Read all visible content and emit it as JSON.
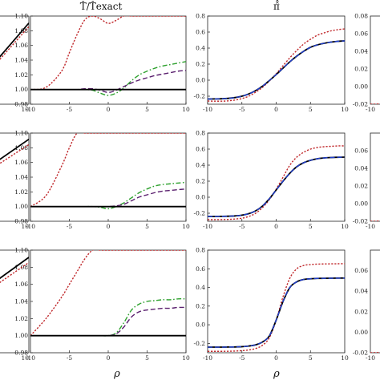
{
  "figure": {
    "titles": [
      "T̂/T̂exact",
      "π̂̂"
    ],
    "xlabel": "ρ"
  },
  "colors": {
    "black": "#000000",
    "red": "#c0282b",
    "green": "#2ca02c",
    "blue": "#1f3fd0",
    "purple": "#5a1f6e"
  },
  "chart_data": [
    {
      "type": "line",
      "id": "r1c2",
      "xlim": [
        -10,
        10
      ],
      "ylim": [
        0.98,
        1.1
      ],
      "xticks": [
        "-10",
        "-5",
        "0",
        "5",
        "10"
      ],
      "yticks": [
        "0.98",
        "1.00",
        "1.02",
        "1.04",
        "1.06",
        "1.08",
        "1.10"
      ],
      "x": [
        -10,
        -8,
        -6,
        -5,
        -4,
        -3,
        -2,
        -1,
        0,
        1,
        2,
        3,
        4,
        5,
        6,
        7,
        8,
        9,
        10
      ],
      "series": [
        {
          "color": "red",
          "dash": "dotted",
          "values": [
            1.0,
            1.003,
            1.025,
            1.05,
            1.075,
            1.095,
            1.1,
            1.096,
            1.09,
            1.094,
            1.1,
            1.1,
            1.1,
            1.1,
            1.1,
            1.1,
            1.1,
            1.1,
            1.1
          ]
        },
        {
          "color": "green",
          "dash": "dashdot",
          "values": [
            1.0,
            1.0,
            1.0,
            1.0,
            1.0,
            1.0,
            0.999,
            0.995,
            0.992,
            0.995,
            1.002,
            1.012,
            1.02,
            1.025,
            1.029,
            1.032,
            1.034,
            1.036,
            1.038
          ]
        },
        {
          "color": "purple",
          "dash": "dashed",
          "values": [
            1.0,
            1.0,
            1.0,
            1.0,
            1.0,
            1.001,
            1.001,
            0.999,
            0.996,
            0.999,
            1.004,
            1.009,
            1.013,
            1.016,
            1.019,
            1.021,
            1.023,
            1.025,
            1.026
          ]
        },
        {
          "color": "black",
          "dash": "solid",
          "values": [
            1.0,
            1.0,
            1.0,
            1.0,
            1.0,
            1.0,
            1.0,
            1.0,
            1.0,
            1.0,
            1.0,
            1.0,
            1.0,
            1.0,
            1.0,
            1.0,
            1.0,
            1.0,
            1.0
          ]
        }
      ]
    },
    {
      "type": "line",
      "id": "r2c2",
      "xlim": [
        -10,
        10
      ],
      "ylim": [
        0.98,
        1.1
      ],
      "xticks": [
        "-10",
        "-5",
        "0",
        "5",
        "10"
      ],
      "yticks": [
        "0.98",
        "1.00",
        "1.02",
        "1.04",
        "1.06",
        "1.08",
        "1.10"
      ],
      "x": [
        -10,
        -8,
        -6,
        -5,
        -4,
        -3,
        -2,
        -1,
        0,
        1,
        2,
        3,
        4,
        5,
        6,
        7,
        8,
        9,
        10
      ],
      "series": [
        {
          "color": "red",
          "dash": "dotted",
          "values": [
            1.0,
            1.015,
            1.055,
            1.08,
            1.1,
            1.1,
            1.1,
            1.1,
            1.1,
            1.1,
            1.1,
            1.1,
            1.1,
            1.1,
            1.1,
            1.1,
            1.1,
            1.1,
            1.1
          ]
        },
        {
          "color": "green",
          "dash": "dashdot",
          "values": [
            1.0,
            1.0,
            1.0,
            1.0,
            1.0,
            1.0,
            1.0,
            0.999,
            0.997,
            1.0,
            1.005,
            1.012,
            1.019,
            1.024,
            1.028,
            1.03,
            1.031,
            1.032,
            1.033
          ]
        },
        {
          "color": "purple",
          "dash": "dashed",
          "values": [
            1.0,
            1.0,
            1.0,
            1.0,
            1.0,
            1.0,
            1.0,
            1.0,
            1.0,
            1.001,
            1.003,
            1.008,
            1.013,
            1.016,
            1.019,
            1.021,
            1.022,
            1.023,
            1.024
          ]
        },
        {
          "color": "black",
          "dash": "solid",
          "values": [
            1.0,
            1.0,
            1.0,
            1.0,
            1.0,
            1.0,
            1.0,
            1.0,
            1.0,
            1.0,
            1.0,
            1.0,
            1.0,
            1.0,
            1.0,
            1.0,
            1.0,
            1.0,
            1.0
          ]
        }
      ]
    },
    {
      "type": "line",
      "id": "r3c2",
      "xlim": [
        -10,
        10
      ],
      "ylim": [
        0.98,
        1.1
      ],
      "xticks": [
        "-10",
        "-5",
        "0",
        "5",
        "10"
      ],
      "yticks": [
        "0.98",
        "1.00",
        "1.02",
        "1.04",
        "1.06",
        "1.08",
        "1.10"
      ],
      "x": [
        -10,
        -8,
        -6,
        -5,
        -4,
        -3,
        -2,
        -1,
        0,
        1,
        2,
        3,
        4,
        5,
        6,
        7,
        8,
        9,
        10
      ],
      "series": [
        {
          "color": "red",
          "dash": "dotted",
          "values": [
            1.0,
            1.02,
            1.045,
            1.06,
            1.075,
            1.09,
            1.1,
            1.1,
            1.1,
            1.1,
            1.1,
            1.1,
            1.1,
            1.1,
            1.1,
            1.1,
            1.1,
            1.1,
            1.1
          ]
        },
        {
          "color": "green",
          "dash": "dashdot",
          "values": [
            1.0,
            1.0,
            1.0,
            1.0,
            1.0,
            1.0,
            1.0,
            1.0,
            1.0,
            1.003,
            1.015,
            1.03,
            1.037,
            1.04,
            1.041,
            1.042,
            1.042,
            1.043,
            1.043
          ]
        },
        {
          "color": "purple",
          "dash": "dashed",
          "values": [
            1.0,
            1.0,
            1.0,
            1.0,
            1.0,
            1.0,
            1.0,
            1.0,
            1.0,
            1.002,
            1.01,
            1.022,
            1.028,
            1.03,
            1.031,
            1.032,
            1.032,
            1.033,
            1.033
          ]
        },
        {
          "color": "black",
          "dash": "solid",
          "values": [
            1.0,
            1.0,
            1.0,
            1.0,
            1.0,
            1.0,
            1.0,
            1.0,
            1.0,
            1.0,
            1.0,
            1.0,
            1.0,
            1.0,
            1.0,
            1.0,
            1.0,
            1.0,
            1.0
          ]
        }
      ]
    },
    {
      "type": "line",
      "id": "r1c3",
      "xlim": [
        -10,
        10
      ],
      "ylim": [
        -0.3,
        0.8
      ],
      "xticks": [
        "-10",
        "-5",
        "0",
        "5",
        "10"
      ],
      "yticks": [
        "-0.2",
        "0.0",
        "0.2",
        "0.4",
        "0.6",
        "0.8"
      ],
      "x": [
        -10,
        -9,
        -8,
        -7,
        -6,
        -5,
        -4,
        -3,
        -2,
        -1,
        0,
        1,
        2,
        3,
        4,
        5,
        6,
        7,
        8,
        9,
        10
      ],
      "series": [
        {
          "color": "red",
          "dash": "dotted",
          "values": [
            -0.26,
            -0.262,
            -0.262,
            -0.258,
            -0.248,
            -0.23,
            -0.2,
            -0.15,
            -0.09,
            -0.01,
            0.08,
            0.18,
            0.28,
            0.37,
            0.45,
            0.51,
            0.56,
            0.59,
            0.615,
            0.63,
            0.64
          ]
        },
        {
          "color": "black",
          "dash": "solid",
          "values": [
            -0.235,
            -0.234,
            -0.232,
            -0.227,
            -0.217,
            -0.2,
            -0.172,
            -0.13,
            -0.075,
            -0.005,
            0.07,
            0.15,
            0.23,
            0.3,
            0.36,
            0.41,
            0.44,
            0.46,
            0.475,
            0.485,
            0.49
          ]
        },
        {
          "color": "blue",
          "dash": "dashed",
          "values": [
            -0.235,
            -0.234,
            -0.232,
            -0.227,
            -0.217,
            -0.2,
            -0.172,
            -0.13,
            -0.075,
            -0.005,
            0.07,
            0.15,
            0.23,
            0.3,
            0.36,
            0.41,
            0.44,
            0.46,
            0.475,
            0.485,
            0.49
          ]
        }
      ]
    },
    {
      "type": "line",
      "id": "r2c3",
      "xlim": [
        -10,
        10
      ],
      "ylim": [
        -0.3,
        0.8
      ],
      "xticks": [
        "-10",
        "-5",
        "0",
        "5",
        "10"
      ],
      "yticks": [
        "-0.2",
        "0.0",
        "0.2",
        "0.4",
        "0.6",
        "0.8"
      ],
      "x": [
        -10,
        -9,
        -8,
        -7,
        -6,
        -5,
        -4,
        -3,
        -2,
        -1,
        0,
        1,
        2,
        3,
        4,
        5,
        6,
        7,
        8,
        9,
        10
      ],
      "series": [
        {
          "color": "red",
          "dash": "dotted",
          "values": [
            -0.28,
            -0.28,
            -0.279,
            -0.277,
            -0.272,
            -0.262,
            -0.24,
            -0.2,
            -0.13,
            -0.03,
            0.1,
            0.25,
            0.4,
            0.5,
            0.56,
            0.6,
            0.62,
            0.63,
            0.635,
            0.64,
            0.64
          ]
        },
        {
          "color": "black",
          "dash": "solid",
          "values": [
            -0.24,
            -0.24,
            -0.239,
            -0.237,
            -0.233,
            -0.224,
            -0.205,
            -0.17,
            -0.11,
            -0.02,
            0.09,
            0.2,
            0.3,
            0.38,
            0.43,
            0.46,
            0.48,
            0.49,
            0.495,
            0.498,
            0.5
          ]
        },
        {
          "color": "blue",
          "dash": "dashed",
          "values": [
            -0.24,
            -0.24,
            -0.239,
            -0.237,
            -0.233,
            -0.224,
            -0.205,
            -0.17,
            -0.11,
            -0.02,
            0.09,
            0.2,
            0.3,
            0.38,
            0.43,
            0.46,
            0.48,
            0.49,
            0.495,
            0.498,
            0.5
          ]
        }
      ]
    },
    {
      "type": "line",
      "id": "r3c3",
      "xlim": [
        -10,
        10
      ],
      "ylim": [
        -0.3,
        0.8
      ],
      "xticks": [
        "-10",
        "-5",
        "0",
        "5",
        "10"
      ],
      "yticks": [
        "-0.2",
        "0.0",
        "0.2",
        "0.4",
        "0.6",
        "0.8"
      ],
      "x": [
        -10,
        -9,
        -8,
        -7,
        -6,
        -5,
        -4,
        -3,
        -2,
        -1,
        0,
        1,
        2,
        3,
        4,
        5,
        6,
        7,
        8,
        9,
        10
      ],
      "series": [
        {
          "color": "red",
          "dash": "dotted",
          "values": [
            -0.285,
            -0.285,
            -0.285,
            -0.284,
            -0.282,
            -0.278,
            -0.27,
            -0.255,
            -0.22,
            -0.14,
            0.05,
            0.3,
            0.5,
            0.6,
            0.635,
            0.645,
            0.65,
            0.652,
            0.653,
            0.654,
            0.655
          ]
        },
        {
          "color": "black",
          "dash": "solid",
          "values": [
            -0.24,
            -0.24,
            -0.24,
            -0.239,
            -0.238,
            -0.235,
            -0.228,
            -0.215,
            -0.185,
            -0.12,
            0.05,
            0.25,
            0.4,
            0.46,
            0.485,
            0.493,
            0.497,
            0.498,
            0.499,
            0.5,
            0.5
          ]
        },
        {
          "color": "blue",
          "dash": "dashed",
          "values": [
            -0.24,
            -0.24,
            -0.24,
            -0.239,
            -0.238,
            -0.235,
            -0.228,
            -0.215,
            -0.185,
            -0.12,
            0.05,
            0.25,
            0.4,
            0.46,
            0.485,
            0.493,
            0.497,
            0.498,
            0.499,
            0.5,
            0.5
          ]
        }
      ]
    },
    {
      "type": "line",
      "id": "r1c1",
      "xlim": [
        -10,
        10
      ],
      "xticks": [
        "10"
      ],
      "series": [
        {
          "color": "black",
          "dash": "solid",
          "points": [
            [
              0.0,
              0.12
            ],
            [
              1.0,
              0.92
            ]
          ]
        },
        {
          "color": "red",
          "dash": "dotted",
          "points": [
            [
              0.0,
              0.1
            ],
            [
              1.0,
              0.88
            ]
          ]
        }
      ]
    },
    {
      "type": "line",
      "id": "r2c1",
      "xlim": [
        -10,
        10
      ],
      "xticks": [
        "10"
      ],
      "series": [
        {
          "color": "black",
          "dash": "solid",
          "points": [
            [
              0.0,
              0.45
            ],
            [
              1.0,
              0.93
            ]
          ]
        },
        {
          "color": "red",
          "dash": "dotted",
          "points": [
            [
              0.0,
              0.42
            ],
            [
              1.0,
              0.87
            ]
          ]
        }
      ]
    },
    {
      "type": "line",
      "id": "r3c1",
      "xlim": [
        -10,
        10
      ],
      "xticks": [
        "10"
      ],
      "series": [
        {
          "color": "black",
          "dash": "solid",
          "points": [
            [
              0.0,
              0.5
            ],
            [
              1.0,
              0.93
            ]
          ]
        },
        {
          "color": "red",
          "dash": "dotted",
          "points": [
            [
              0.0,
              0.47
            ],
            [
              1.0,
              0.88
            ]
          ]
        }
      ]
    },
    {
      "type": "line",
      "id": "r1c4",
      "ylim": [
        -0.02,
        0.08
      ],
      "yticks": [
        "0.08",
        "0.06",
        "0.04",
        "0.02",
        "0.00",
        "-0.02"
      ],
      "xticks": [
        "-10"
      ],
      "series": [
        {
          "color": "red",
          "dash": "dotted",
          "points": [
            [
              0.0,
              0.0
            ],
            [
              0.3,
              0.0
            ],
            [
              0.35,
              -0.02
            ]
          ]
        }
      ]
    },
    {
      "type": "line",
      "id": "r2c4",
      "ylim": [
        -0.02,
        0.08
      ],
      "yticks": [
        "0.06",
        "0.04",
        "0.02",
        "0.00",
        "-0.02"
      ],
      "xticks": [
        "-10"
      ],
      "series": [
        {
          "color": "red",
          "dash": "dotted",
          "points": [
            [
              0.0,
              0.0
            ],
            [
              0.3,
              0.0
            ],
            [
              0.35,
              -0.02
            ]
          ]
        }
      ]
    },
    {
      "type": "line",
      "id": "r3c4",
      "ylim": [
        -0.02,
        0.08
      ],
      "yticks": [
        "0.06",
        "0.04",
        "0.02",
        "0.00",
        "-0.02"
      ],
      "xticks": [
        "-10"
      ],
      "series": [
        {
          "color": "red",
          "dash": "dotted",
          "points": [
            [
              0.0,
              0.0
            ],
            [
              0.3,
              0.0
            ],
            [
              0.35,
              -0.02
            ]
          ]
        }
      ]
    }
  ]
}
